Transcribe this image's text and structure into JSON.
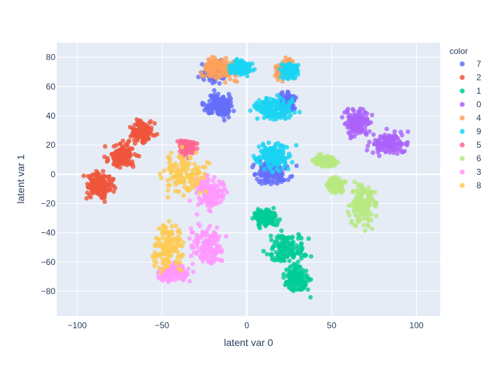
{
  "chart_data": {
    "type": "scatter",
    "xlabel": "latent var 0",
    "ylabel": "latent var 1",
    "xlim": [
      -112,
      114
    ],
    "ylim": [
      -97,
      90
    ],
    "x_ticks": [
      -100,
      -50,
      0,
      50,
      100
    ],
    "x_tick_labels": [
      "−100",
      "−50",
      "0",
      "50",
      "100"
    ],
    "y_ticks": [
      80,
      60,
      40,
      20,
      0,
      -20,
      -40,
      -60,
      -80
    ],
    "y_tick_labels": [
      "80",
      "60",
      "40",
      "20",
      "0",
      "−20",
      "−40",
      "−60",
      "−80"
    ],
    "grid": true,
    "plot_background": "#E5ECF6",
    "legend": {
      "title": "color",
      "placement": "right"
    },
    "series": [
      {
        "name": "7",
        "color": "#636EFA",
        "clusters": [
          {
            "x": [
              -30,
              -8
            ],
            "y": [
              60,
              80
            ]
          },
          {
            "x": [
              -28,
              -5
            ],
            "y": [
              36,
              58
            ]
          },
          {
            "x": [
              0,
              30
            ],
            "y": [
              -12,
              18
            ]
          },
          {
            "x": [
              18,
              30
            ],
            "y": [
              40,
              58
            ]
          }
        ]
      },
      {
        "name": "2",
        "color": "#EF553B",
        "clusters": [
          {
            "x": [
              -98,
              -75
            ],
            "y": [
              -22,
              8
            ]
          },
          {
            "x": [
              -85,
              -62
            ],
            "y": [
              2,
              24
            ]
          },
          {
            "x": [
              -72,
              -52
            ],
            "y": [
              18,
              40
            ]
          }
        ]
      },
      {
        "name": "1",
        "color": "#00CC96",
        "clusters": [
          {
            "x": [
              2,
              20
            ],
            "y": [
              -38,
              -22
            ]
          },
          {
            "x": [
              8,
              38
            ],
            "y": [
              -65,
              -35
            ]
          },
          {
            "x": [
              18,
              40
            ],
            "y": [
              -84,
              -58
            ]
          }
        ]
      },
      {
        "name": "0",
        "color": "#AB63FA",
        "clusters": [
          {
            "x": [
              55,
              75
            ],
            "y": [
              22,
              48
            ]
          },
          {
            "x": [
              68,
              100
            ],
            "y": [
              10,
              32
            ]
          }
        ]
      },
      {
        "name": "4",
        "color": "#FFA15A",
        "clusters": [
          {
            "x": [
              -32,
              2
            ],
            "y": [
              60,
              84
            ]
          },
          {
            "x": [
              15,
              30
            ],
            "y": [
              62,
              80
            ]
          }
        ]
      },
      {
        "name": "9",
        "color": "#19D3F3",
        "clusters": [
          {
            "x": [
              -12,
              5
            ],
            "y": [
              66,
              80
            ]
          },
          {
            "x": [
              18,
              32
            ],
            "y": [
              62,
              80
            ]
          },
          {
            "x": [
              -2,
              35
            ],
            "y": [
              34,
              56
            ]
          },
          {
            "x": [
              0,
              32
            ],
            "y": [
              0,
              26
            ]
          }
        ]
      },
      {
        "name": "5",
        "color": "#FF6692",
        "clusters": [
          {
            "x": [
              -42,
              -28
            ],
            "y": [
              10,
              26
            ]
          }
        ]
      },
      {
        "name": "6",
        "color": "#B6E880",
        "clusters": [
          {
            "x": [
              38,
              55
            ],
            "y": [
              4,
              14
            ]
          },
          {
            "x": [
              45,
              60
            ],
            "y": [
              -14,
              0
            ]
          },
          {
            "x": [
              57,
              80
            ],
            "y": [
              -42,
              0
            ]
          }
        ]
      },
      {
        "name": "3",
        "color": "#FF97FF",
        "clusters": [
          {
            "x": [
              -35,
              -8
            ],
            "y": [
              -30,
              5
            ]
          },
          {
            "x": [
              -38,
              -8
            ],
            "y": [
              -68,
              -28
            ]
          },
          {
            "x": [
              -55,
              -30
            ],
            "y": [
              -76,
              -58
            ]
          }
        ]
      },
      {
        "name": "8",
        "color": "#FECB52",
        "clusters": [
          {
            "x": [
              -60,
              -32
            ],
            "y": [
              -72,
              -28
            ]
          },
          {
            "x": [
              -55,
              -18
            ],
            "y": [
              -20,
              22
            ]
          }
        ]
      }
    ]
  }
}
